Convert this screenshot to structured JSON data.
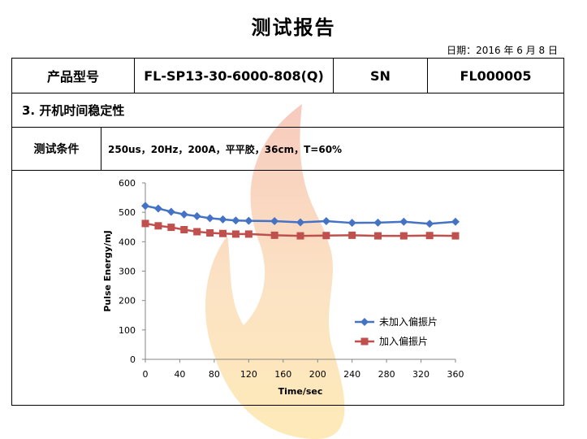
{
  "header": {
    "title": "测试报告",
    "date": "日期：2016 年 6 月 8 日"
  },
  "table": {
    "model_label": "产品型号",
    "model_value": "FL-SP13-30-6000-808(Q)",
    "sn_label": "SN",
    "sn_value": "FL000005",
    "section_title": "3.  开机时间稳定性",
    "condition_label": "测试条件",
    "condition_value": "250us，20Hz，200A，平平胶，36cm，T=60%"
  },
  "chart_data": {
    "type": "line",
    "xlabel": "Time/sec",
    "ylabel": "Pulse Energy/mJ",
    "xlim": [
      0,
      360
    ],
    "ylim": [
      0,
      600
    ],
    "xticks": [
      0,
      40,
      80,
      120,
      160,
      200,
      240,
      280,
      320,
      360
    ],
    "yticks": [
      0,
      100,
      200,
      300,
      400,
      500,
      600
    ],
    "legend_position": "lower-right",
    "series": [
      {
        "name": "未加入偏振片",
        "color": "#4472C4",
        "marker": "diamond",
        "x": [
          0,
          15,
          30,
          45,
          60,
          75,
          90,
          105,
          120,
          150,
          180,
          210,
          240,
          270,
          300,
          330,
          360
        ],
        "y": [
          522,
          513,
          502,
          493,
          487,
          480,
          476,
          472,
          471,
          470,
          466,
          470,
          464,
          465,
          468,
          461,
          468
        ]
      },
      {
        "name": "加入偏振片",
        "color": "#C0504D",
        "marker": "square",
        "x": [
          0,
          15,
          30,
          45,
          60,
          75,
          90,
          105,
          120,
          150,
          180,
          210,
          240,
          270,
          300,
          330,
          360
        ],
        "y": [
          462,
          454,
          449,
          441,
          434,
          430,
          428,
          426,
          426,
          422,
          420,
          421,
          422,
          420,
          420,
          421,
          420
        ]
      }
    ]
  }
}
